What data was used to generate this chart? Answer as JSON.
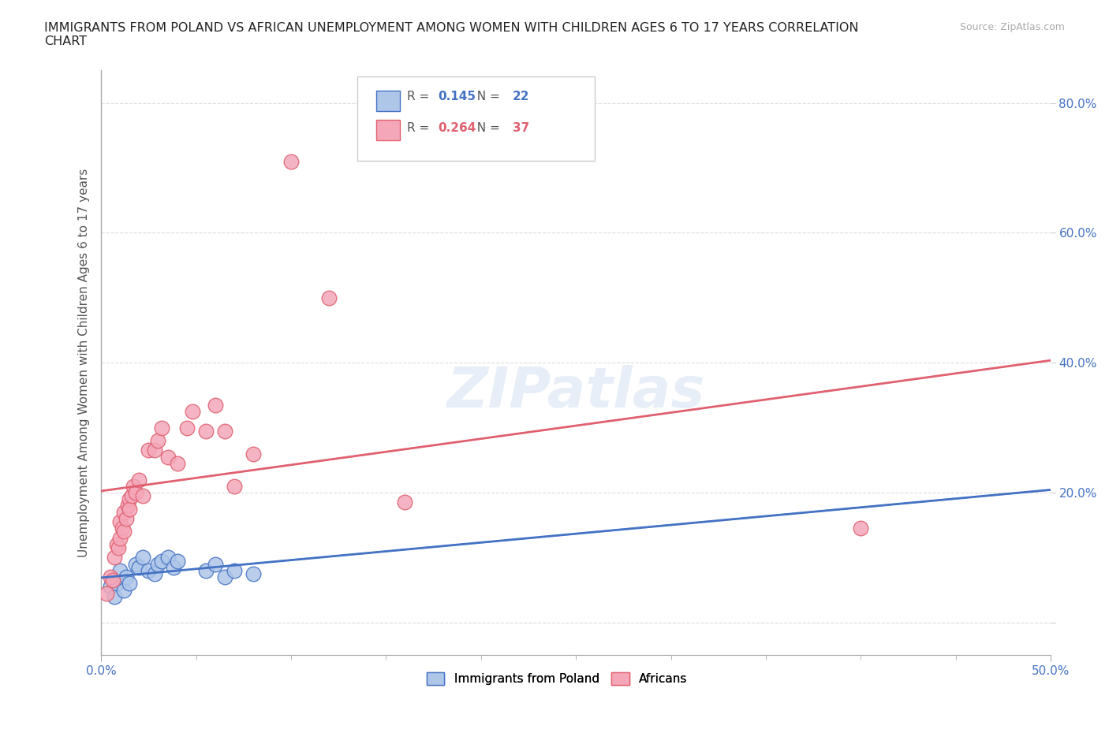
{
  "title": "IMMIGRANTS FROM POLAND VS AFRICAN UNEMPLOYMENT AMONG WOMEN WITH CHILDREN AGES 6 TO 17 YEARS CORRELATION\nCHART",
  "source": "Source: ZipAtlas.com",
  "xlabel_ticks": [
    "0.0%",
    "50.0%"
  ],
  "ylabel_label": "Unemployment Among Women with Children Ages 6 to 17 years",
  "xlim": [
    0,
    0.5
  ],
  "ylim": [
    -0.05,
    0.85
  ],
  "yticks": [
    0.0,
    0.2,
    0.4,
    0.6,
    0.8
  ],
  "ytick_labels": [
    "",
    "20.0%",
    "40.0%",
    "60.0%",
    "80.0%"
  ],
  "blue_R": "0.145",
  "blue_N": "22",
  "pink_R": "0.264",
  "pink_N": "37",
  "blue_color": "#aec6e8",
  "pink_color": "#f4a7b9",
  "blue_line_color": "#4472c4",
  "pink_line_color": "#e06070",
  "blue_scatter": [
    [
      0.005,
      0.055
    ],
    [
      0.007,
      0.04
    ],
    [
      0.008,
      0.06
    ],
    [
      0.01,
      0.08
    ],
    [
      0.012,
      0.05
    ],
    [
      0.013,
      0.07
    ],
    [
      0.015,
      0.06
    ],
    [
      0.018,
      0.09
    ],
    [
      0.02,
      0.085
    ],
    [
      0.022,
      0.1
    ],
    [
      0.025,
      0.08
    ],
    [
      0.028,
      0.075
    ],
    [
      0.03,
      0.09
    ],
    [
      0.032,
      0.095
    ],
    [
      0.035,
      0.1
    ],
    [
      0.038,
      0.085
    ],
    [
      0.04,
      0.095
    ],
    [
      0.055,
      0.08
    ],
    [
      0.06,
      0.09
    ],
    [
      0.065,
      0.07
    ],
    [
      0.07,
      0.08
    ],
    [
      0.08,
      0.075
    ]
  ],
  "pink_scatter": [
    [
      0.003,
      0.045
    ],
    [
      0.005,
      0.07
    ],
    [
      0.006,
      0.065
    ],
    [
      0.007,
      0.1
    ],
    [
      0.008,
      0.12
    ],
    [
      0.009,
      0.115
    ],
    [
      0.01,
      0.13
    ],
    [
      0.01,
      0.155
    ],
    [
      0.011,
      0.145
    ],
    [
      0.012,
      0.14
    ],
    [
      0.012,
      0.17
    ],
    [
      0.013,
      0.16
    ],
    [
      0.014,
      0.18
    ],
    [
      0.015,
      0.19
    ],
    [
      0.015,
      0.175
    ],
    [
      0.016,
      0.195
    ],
    [
      0.017,
      0.21
    ],
    [
      0.018,
      0.2
    ],
    [
      0.02,
      0.22
    ],
    [
      0.022,
      0.195
    ],
    [
      0.025,
      0.265
    ],
    [
      0.028,
      0.265
    ],
    [
      0.03,
      0.28
    ],
    [
      0.032,
      0.3
    ],
    [
      0.035,
      0.255
    ],
    [
      0.04,
      0.245
    ],
    [
      0.045,
      0.3
    ],
    [
      0.048,
      0.325
    ],
    [
      0.055,
      0.295
    ],
    [
      0.06,
      0.335
    ],
    [
      0.065,
      0.295
    ],
    [
      0.07,
      0.21
    ],
    [
      0.08,
      0.26
    ],
    [
      0.1,
      0.71
    ],
    [
      0.12,
      0.5
    ],
    [
      0.16,
      0.185
    ],
    [
      0.4,
      0.145
    ]
  ],
  "watermark": "ZIPatlas",
  "background_color": "#ffffff",
  "grid_color": "#cccccc"
}
